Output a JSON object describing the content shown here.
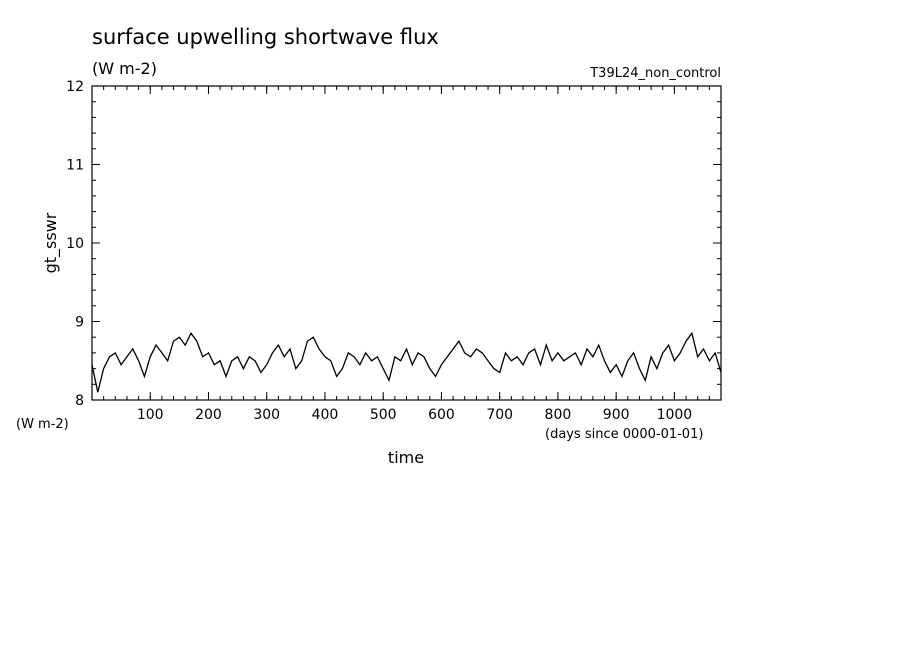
{
  "chart_data": {
    "type": "line",
    "title": "surface upwelling shortwave flux",
    "subtitle": "(W m-2)",
    "run_label": "T39L24_non_control",
    "xlabel": "time",
    "x_units": "(days since 0000-01-01)",
    "ylabel": "gt_sswr",
    "y_units": "(W m-2)",
    "xlim": [
      0,
      1080
    ],
    "ylim": [
      8,
      12
    ],
    "x_ticks": [
      100,
      200,
      300,
      400,
      500,
      600,
      700,
      800,
      900,
      1000
    ],
    "y_ticks": [
      8,
      9,
      10,
      11,
      12
    ],
    "grid": false,
    "series": [
      {
        "x": [
          0,
          10,
          20,
          30,
          40,
          50,
          60,
          70,
          80,
          90,
          100,
          110,
          120,
          130,
          140,
          150,
          160,
          170,
          180,
          190,
          200,
          210,
          220,
          230,
          240,
          250,
          260,
          270,
          280,
          290,
          300,
          310,
          320,
          330,
          340,
          350,
          360,
          370,
          380,
          390,
          400,
          410,
          420,
          430,
          440,
          450,
          460,
          470,
          480,
          490,
          500,
          510,
          520,
          530,
          540,
          550,
          560,
          570,
          580,
          590,
          600,
          610,
          620,
          630,
          640,
          650,
          660,
          670,
          680,
          690,
          700,
          710,
          720,
          730,
          740,
          750,
          760,
          770,
          780,
          790,
          800,
          810,
          820,
          830,
          840,
          850,
          860,
          870,
          880,
          890,
          900,
          910,
          920,
          930,
          940,
          950,
          960,
          970,
          980,
          990,
          1000,
          1010,
          1020,
          1030,
          1040,
          1050,
          1060,
          1070,
          1080
        ],
        "y": [
          8.45,
          8.1,
          8.4,
          8.55,
          8.6,
          8.45,
          8.55,
          8.65,
          8.5,
          8.3,
          8.55,
          8.7,
          8.6,
          8.5,
          8.75,
          8.8,
          8.7,
          8.85,
          8.75,
          8.55,
          8.6,
          8.45,
          8.5,
          8.3,
          8.5,
          8.55,
          8.4,
          8.55,
          8.5,
          8.35,
          8.45,
          8.6,
          8.7,
          8.55,
          8.65,
          8.4,
          8.5,
          8.75,
          8.8,
          8.65,
          8.55,
          8.5,
          8.3,
          8.4,
          8.6,
          8.55,
          8.45,
          8.6,
          8.5,
          8.55,
          8.4,
          8.25,
          8.55,
          8.5,
          8.65,
          8.45,
          8.6,
          8.55,
          8.4,
          8.3,
          8.45,
          8.55,
          8.65,
          8.75,
          8.6,
          8.55,
          8.65,
          8.6,
          8.5,
          8.4,
          8.35,
          8.6,
          8.5,
          8.55,
          8.45,
          8.6,
          8.65,
          8.45,
          8.7,
          8.5,
          8.6,
          8.5,
          8.55,
          8.6,
          8.45,
          8.65,
          8.55,
          8.7,
          8.5,
          8.35,
          8.45,
          8.3,
          8.5,
          8.6,
          8.4,
          8.25,
          8.55,
          8.4,
          8.6,
          8.7,
          8.5,
          8.6,
          8.75,
          8.85,
          8.55,
          8.65,
          8.5,
          8.6,
          8.35
        ]
      }
    ]
  }
}
